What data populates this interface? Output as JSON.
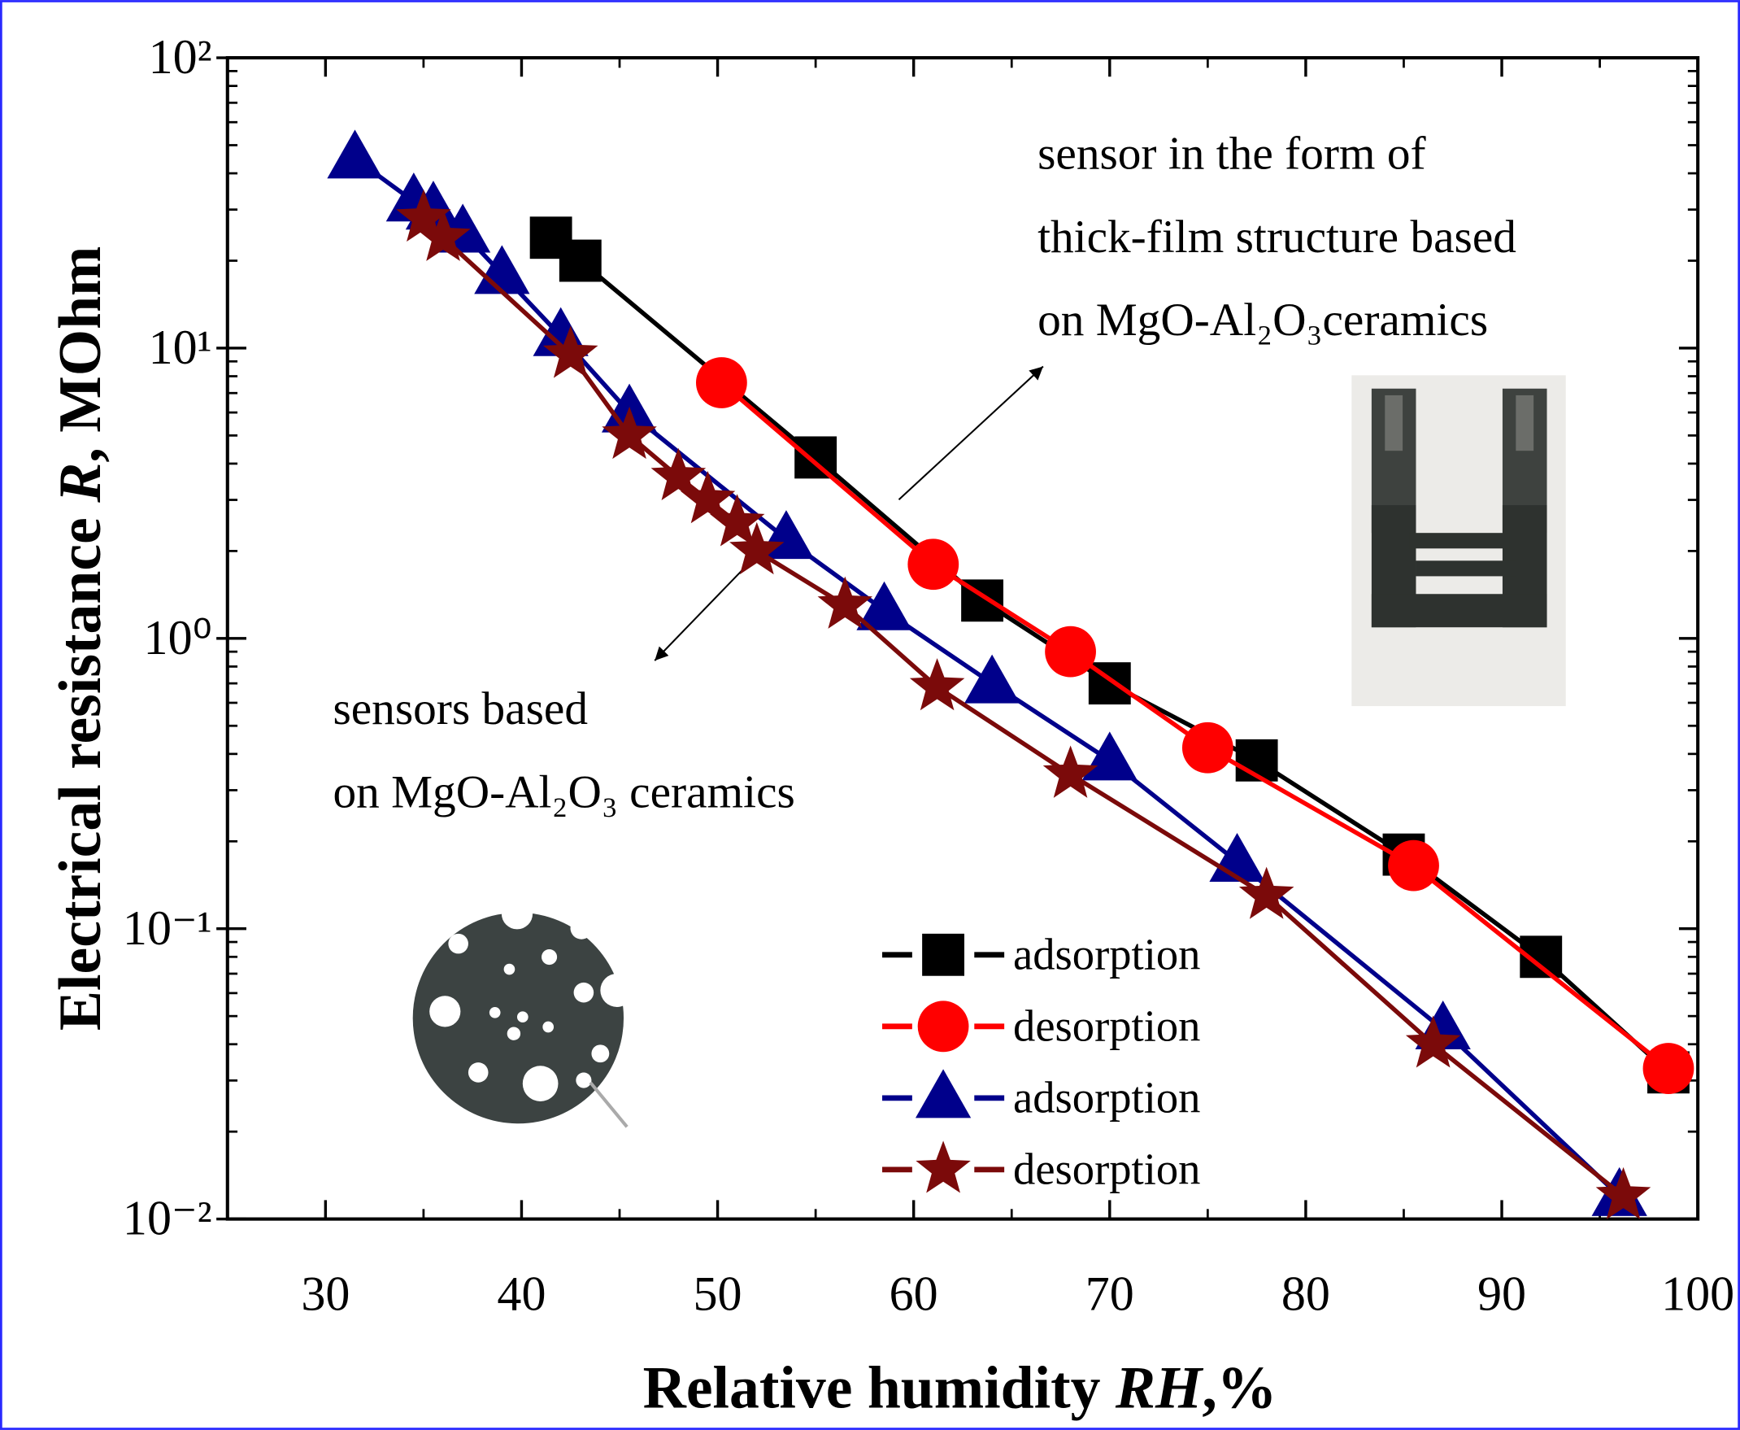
{
  "chart_data": {
    "type": "line",
    "xlabel": [
      "Relative humidity ",
      "RH",
      ",%"
    ],
    "ylabel": [
      "Electrical resistance ",
      "R",
      ", MOhm"
    ],
    "xlim": [
      25,
      100
    ],
    "xticks": [
      30,
      40,
      50,
      60,
      70,
      80,
      90,
      100
    ],
    "ylim": [
      0.01,
      100
    ],
    "yscale": "log",
    "yticks": [
      {
        "value": 0.01,
        "label": "10⁻²"
      },
      {
        "value": 0.1,
        "label": "10⁻¹"
      },
      {
        "value": 1,
        "label": "10⁰"
      },
      {
        "value": 10,
        "label": "10¹"
      },
      {
        "value": 100,
        "label": "10²"
      }
    ],
    "annotations": [
      [
        "sensor in the form of",
        "thick-film structure based",
        "on MgO-Al₂O₃ceramics"
      ],
      [
        "sensors based",
        "on MgO-Al₂O₃ ceramics"
      ]
    ],
    "series": [
      {
        "name": "adsorption",
        "color": "#000000",
        "marker": "square",
        "x": [
          41.5,
          43,
          55,
          63.5,
          70,
          77.5,
          85,
          92,
          98.5
        ],
        "values": [
          24,
          20,
          4.2,
          1.35,
          0.7,
          0.38,
          0.18,
          0.08,
          0.032
        ]
      },
      {
        "name": "desorption",
        "color": "#ff0000",
        "marker": "circle",
        "x": [
          50.2,
          61,
          68,
          75,
          85.5,
          98.5
        ],
        "values": [
          7.6,
          1.8,
          0.9,
          0.42,
          0.165,
          0.033
        ]
      },
      {
        "name": "adsorption",
        "color": "#00008b",
        "marker": "triangle",
        "x": [
          31.5,
          34.5,
          35.5,
          37,
          39,
          42,
          45.5,
          53.5,
          58.5,
          64,
          70,
          76.5,
          87,
          96
        ],
        "values": [
          45,
          32,
          30,
          25,
          18,
          11,
          6,
          2.2,
          1.25,
          0.7,
          0.38,
          0.17,
          0.045,
          0.012
        ]
      },
      {
        "name": "desorption",
        "color": "#7b0a0a",
        "marker": "star",
        "x": [
          35,
          36,
          42.5,
          45.5,
          48,
          49.5,
          51,
          52,
          56.5,
          61.2,
          68,
          78,
          86.5,
          96.2
        ],
        "values": [
          28,
          24,
          9.5,
          5,
          3.6,
          3,
          2.5,
          2,
          1.3,
          0.68,
          0.34,
          0.13,
          0.04,
          0.012
        ]
      }
    ]
  }
}
